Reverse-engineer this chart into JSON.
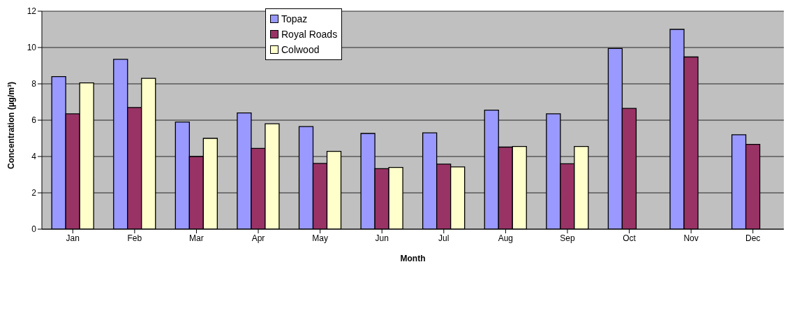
{
  "chart_data": {
    "type": "bar",
    "xlabel": "Month",
    "ylabel": "Concentration (µg/m³)",
    "categories": [
      "Jan",
      "Feb",
      "Mar",
      "Apr",
      "May",
      "Jun",
      "Jul",
      "Aug",
      "Sep",
      "Oct",
      "Nov",
      "Dec"
    ],
    "series": [
      {
        "name": "Topaz",
        "color": "#9999ff",
        "values": [
          8.4,
          9.35,
          5.9,
          6.4,
          5.65,
          5.27,
          5.3,
          6.55,
          6.35,
          9.95,
          11.0,
          5.2
        ]
      },
      {
        "name": "Royal Roads",
        "color": "#993366",
        "values": [
          6.35,
          6.7,
          4.0,
          4.45,
          3.62,
          3.33,
          3.58,
          4.52,
          3.6,
          6.65,
          9.48,
          4.67
        ]
      },
      {
        "name": "Colwood",
        "color": "#ffffcc",
        "values": [
          8.05,
          8.3,
          5.0,
          5.8,
          4.28,
          3.4,
          3.43,
          4.55,
          4.55,
          null,
          null,
          null
        ]
      }
    ],
    "ylim": [
      0,
      12
    ],
    "yticks": [
      0,
      2,
      4,
      6,
      8,
      10,
      12
    ],
    "grid": "y",
    "legend": "top"
  }
}
